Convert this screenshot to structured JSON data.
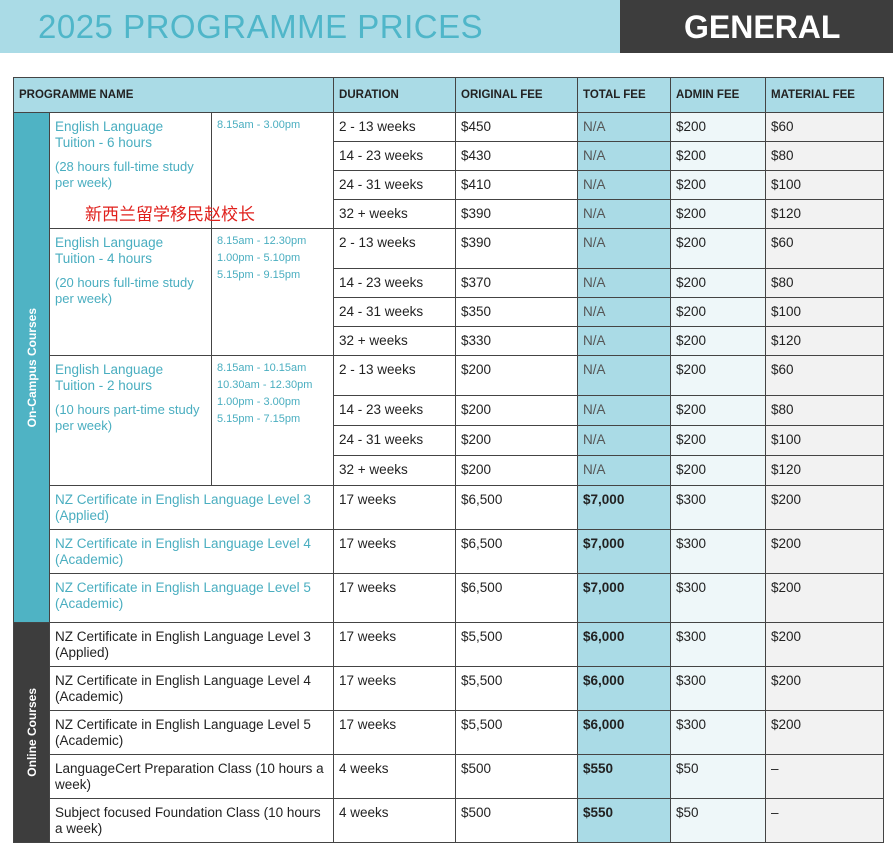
{
  "header": {
    "title": "2025 PROGRAMME PRICES",
    "badge": "GENERAL"
  },
  "watermark": "新西兰留学移民赵校长",
  "table": {
    "columns": [
      "PROGRAMME NAME",
      "DURATION",
      "ORIGINAL FEE",
      "TOTAL FEE",
      "ADMIN FEE",
      "MATERIAL FEE"
    ],
    "groups": [
      {
        "label": "On-Campus Courses",
        "programmes": [
          {
            "name": "English Language Tuition - 6 hours",
            "note": "(28 hours full-time study per week)",
            "times": [
              "8.15am - 3.00pm"
            ],
            "rows": [
              [
                "2 - 13 weeks",
                "$450",
                "N/A",
                "$200",
                "$60"
              ],
              [
                "14 - 23 weeks",
                "$430",
                "N/A",
                "$200",
                "$80"
              ],
              [
                "24 - 31 weeks",
                "$410",
                "N/A",
                "$200",
                "$100"
              ],
              [
                "32 + weeks",
                "$390",
                "N/A",
                "$200",
                "$120"
              ]
            ]
          },
          {
            "name": "English Language Tuition - 4 hours",
            "note": "(20 hours full-time study per week)",
            "times": [
              "8.15am - 12.30pm",
              "1.00pm -  5.10pm",
              "5.15pm - 9.15pm"
            ],
            "rows": [
              [
                "2 - 13 weeks",
                "$390",
                "N/A",
                "$200",
                "$60"
              ],
              [
                "14 - 23 weeks",
                "$370",
                "N/A",
                "$200",
                "$80"
              ],
              [
                "24 - 31 weeks",
                "$350",
                "N/A",
                "$200",
                "$100"
              ],
              [
                "32 + weeks",
                "$330",
                "N/A",
                "$200",
                "$120"
              ]
            ]
          },
          {
            "name": "English Language Tuition - 2 hours",
            "note": "(10  hours part-time study per week)",
            "times": [
              "8.15am - 10.15am",
              "10.30am - 12.30pm",
              "1.00pm - 3.00pm",
              "5.15pm - 7.15pm"
            ],
            "rows": [
              [
                "2 - 13 weeks",
                "$200",
                "N/A",
                "$200",
                "$60"
              ],
              [
                "14 - 23 weeks",
                "$200",
                "N/A",
                "$200",
                "$80"
              ],
              [
                "24 - 31 weeks",
                "$200",
                "N/A",
                "$200",
                "$100"
              ],
              [
                "32 + weeks",
                "$200",
                "N/A",
                "$200",
                "$120"
              ]
            ]
          },
          {
            "name": "NZ Certificate in English Language Level 3 (Applied)",
            "rows": [
              [
                "17 weeks",
                "$6,500",
                "$7,000",
                "$300",
                "$200"
              ]
            ]
          },
          {
            "name": "NZ Certificate in English Language Level 4 (Academic)",
            "rows": [
              [
                "17 weeks",
                "$6,500",
                "$7,000",
                "$300",
                "$200"
              ]
            ]
          },
          {
            "name": "NZ Certificate in English Language Level 5 (Academic)",
            "rows": [
              [
                "17 weeks",
                "$6,500",
                "$7,000",
                "$300",
                "$200"
              ]
            ]
          }
        ]
      },
      {
        "label": "Online Courses",
        "programmes": [
          {
            "name": "NZ Certificate in English Language Level 3 (Applied)",
            "rows": [
              [
                "17 weeks",
                "$5,500",
                "$6,000",
                "$300",
                "$200"
              ]
            ]
          },
          {
            "name": "NZ Certificate in English Language Level 4 (Academic)",
            "rows": [
              [
                "17 weeks",
                "$5,500",
                "$6,000",
                "$300",
                "$200"
              ]
            ]
          },
          {
            "name": "NZ Certificate in English Language Level 5 (Academic)",
            "rows": [
              [
                "17 weeks",
                "$5,500",
                "$6,000",
                "$300",
                "$200"
              ]
            ]
          },
          {
            "name": "LanguageCert Preparation Class (10 hours a week)",
            "rows": [
              [
                "4 weeks",
                "$500",
                "$550",
                "$50",
                "–"
              ]
            ]
          },
          {
            "name": "Subject focused Foundation Class (10 hours a week)",
            "rows": [
              [
                "4 weeks",
                "$500",
                "$550",
                "$50",
                "–"
              ]
            ]
          }
        ]
      }
    ]
  }
}
